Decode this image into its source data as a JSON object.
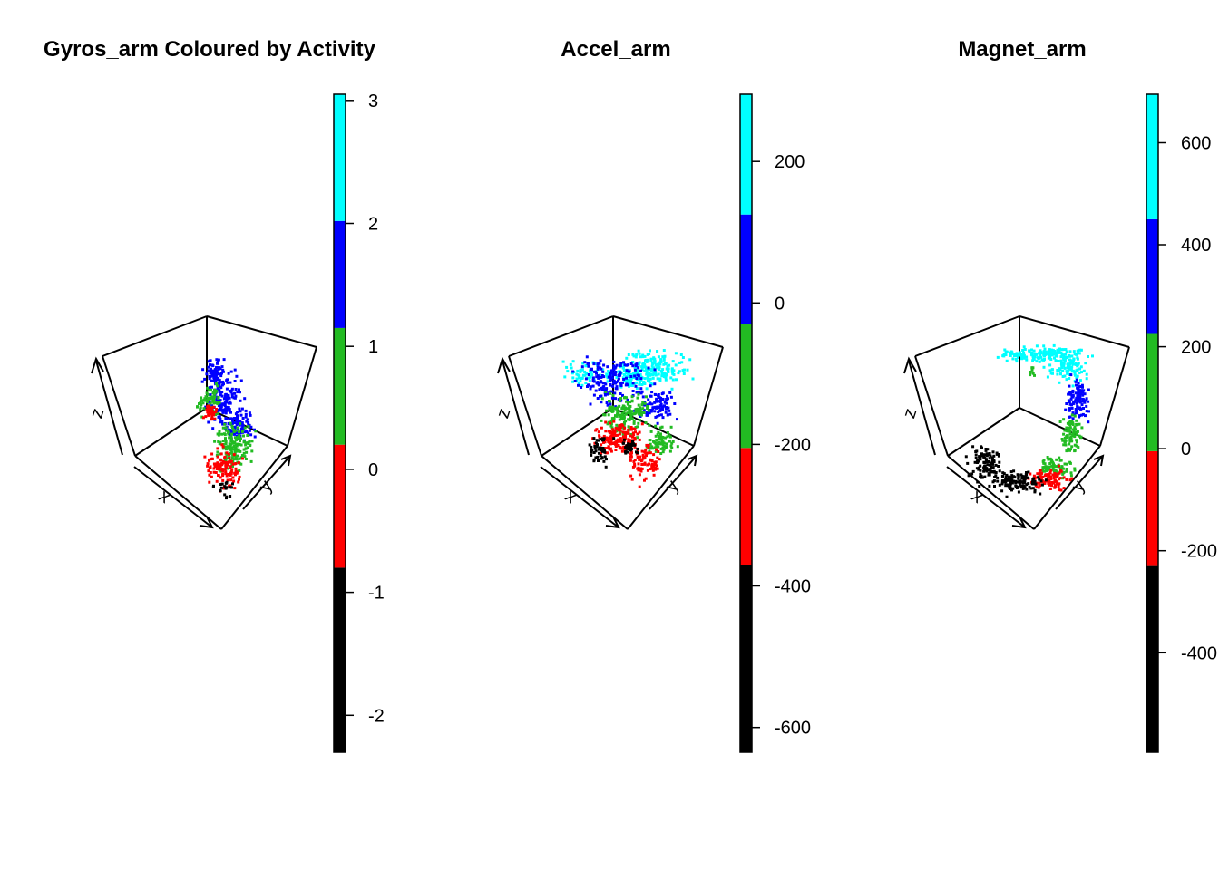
{
  "chart_data": [
    {
      "type": "scatter",
      "title": "Gyros_arm Coloured by Activity",
      "axis_labels": [
        "x",
        "y",
        "z"
      ],
      "colorbar": {
        "range": [
          -2.3,
          3.05
        ],
        "breaks": [
          -2.3,
          -0.8,
          0.2,
          1.15,
          2.02,
          3.05
        ],
        "colors": [
          "#000000",
          "#ff0000",
          "#22bb22",
          "#0000ff",
          "#00ffff"
        ],
        "ticks": [
          -2,
          -1,
          0,
          1,
          2,
          3
        ]
      }
    },
    {
      "type": "scatter",
      "title": "Accel_arm",
      "axis_labels": [
        "x",
        "y",
        "z"
      ],
      "colorbar": {
        "range": [
          -635,
          295
        ],
        "breaks": [
          -635,
          -370,
          -205,
          -30,
          125,
          295
        ],
        "colors": [
          "#000000",
          "#ff0000",
          "#22bb22",
          "#0000ff",
          "#00ffff"
        ],
        "ticks": [
          -600,
          -400,
          -200,
          0,
          200
        ]
      }
    },
    {
      "type": "scatter",
      "title": "Magnet_arm",
      "axis_labels": [
        "x",
        "y",
        "z"
      ],
      "colorbar": {
        "range": [
          -595,
          695
        ],
        "breaks": [
          -595,
          -230,
          -5,
          225,
          450,
          695
        ],
        "colors": [
          "#000000",
          "#ff0000",
          "#22bb22",
          "#0000ff",
          "#00ffff"
        ],
        "ticks": [
          -400,
          -200,
          0,
          200,
          400,
          600
        ]
      }
    }
  ]
}
